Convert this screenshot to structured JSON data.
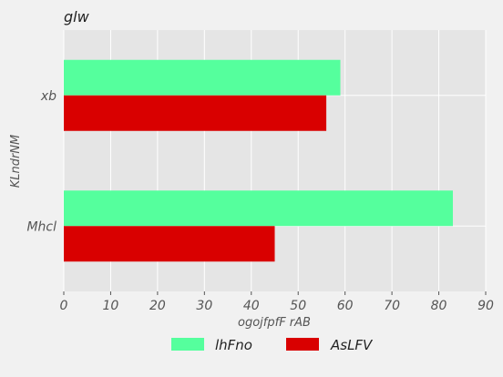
{
  "chart_data": {
    "type": "bar",
    "orientation": "horizontal",
    "title": "glw",
    "xlabel": "ogojfpfF rAB",
    "ylabel": "KLndrNM",
    "categories": [
      "xb",
      "Mhcl"
    ],
    "series": [
      {
        "name": "lhFno",
        "values": [
          59,
          83
        ],
        "color": "#55ff9d"
      },
      {
        "name": "AsLFV",
        "values": [
          56,
          45
        ],
        "color": "#d90000"
      }
    ],
    "xlim": [
      0,
      90
    ],
    "xticks": [
      "0",
      "10",
      "20",
      "30",
      "40",
      "50",
      "60",
      "70",
      "80",
      "90"
    ],
    "grid": true,
    "legend": "bottom"
  }
}
